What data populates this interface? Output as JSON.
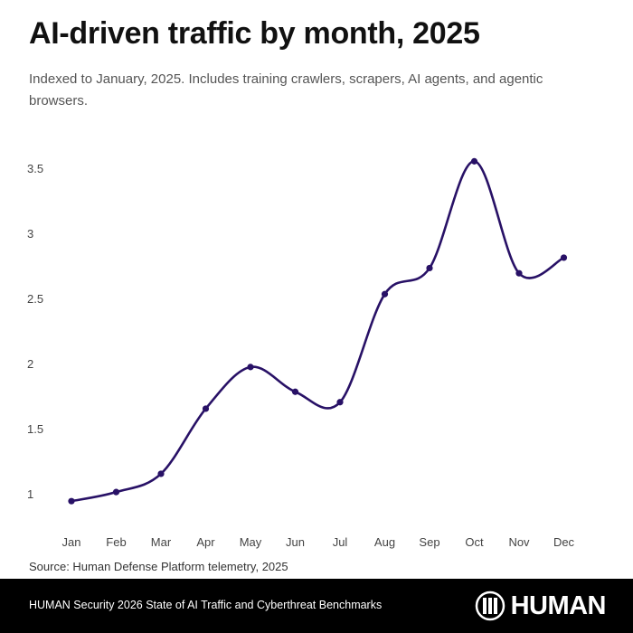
{
  "header": {
    "title": "AI-driven traffic by month, 2025",
    "subtitle": "Indexed to January, 2025. Includes training crawlers, scrapers, AI agents, and agentic browsers."
  },
  "source": "Source: Human Defense Platform telemetry, 2025",
  "footer": {
    "text": "HUMAN Security 2026 State of AI Traffic and Cyberthreat Benchmarks",
    "brand": "HUMAN",
    "logo_icon": "human-logo-icon"
  },
  "colors": {
    "line": "#281166",
    "background": "#ffffff",
    "footer_background": "#000000"
  },
  "chart_data": {
    "type": "line",
    "title": "AI-driven traffic by month, 2025",
    "subtitle": "Indexed to January, 2025. Includes training crawlers, scrapers, AI agents, and agentic browsers.",
    "xlabel": "",
    "ylabel": "",
    "categories": [
      "Jan",
      "Feb",
      "Mar",
      "Apr",
      "May",
      "Jun",
      "Jul",
      "Aug",
      "Sep",
      "Oct",
      "Nov",
      "Dec"
    ],
    "series": [
      {
        "values": [
          0.95,
          1.02,
          1.16,
          1.66,
          1.98,
          1.79,
          1.71,
          2.54,
          2.74,
          3.56,
          2.7,
          2.82
        ]
      }
    ],
    "yticks": [
      "1",
      "1.5",
      "2",
      "2.5",
      "3",
      "3.5"
    ],
    "ytick_values": [
      1,
      1.5,
      2,
      2.5,
      3,
      3.5
    ],
    "ylim": [
      0.8,
      3.8
    ],
    "grid": false,
    "legend": "none",
    "smooth": true,
    "markers": true
  }
}
